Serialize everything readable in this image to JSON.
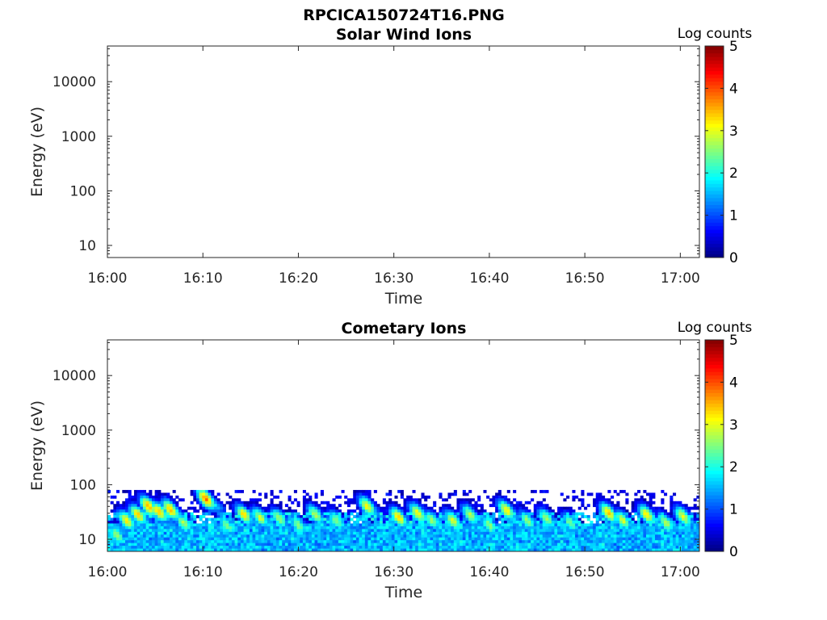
{
  "figure_title": "RPCICA150724T16.PNG",
  "chart_data": [
    {
      "type": "heatmap",
      "title": "Solar Wind Ions",
      "xlabel": "Time",
      "ylabel": "Energy (eV)",
      "x_ticks": [
        "16:00",
        "16:10",
        "16:20",
        "16:30",
        "16:40",
        "16:50",
        "17:00"
      ],
      "y_scale": "log",
      "y_ticks": [
        {
          "value": 10,
          "label": "10"
        },
        {
          "value": 100,
          "label": "100"
        },
        {
          "value": 1000,
          "label": "1000"
        },
        {
          "value": 10000,
          "label": "10000"
        }
      ],
      "ylim": [
        6,
        45000
      ],
      "xlim": [
        "16:00",
        "17:02"
      ],
      "colorbar": {
        "label": "Log counts",
        "range": [
          0,
          5
        ],
        "ticks": [
          "0",
          "1",
          "2",
          "3",
          "4",
          "5"
        ],
        "colormap": "jet"
      },
      "data": "empty"
    },
    {
      "type": "heatmap",
      "title": "Cometary Ions",
      "xlabel": "Time",
      "ylabel": "Energy (eV)",
      "x_ticks": [
        "16:00",
        "16:10",
        "16:20",
        "16:30",
        "16:40",
        "16:50",
        "17:00"
      ],
      "y_scale": "log",
      "y_ticks": [
        {
          "value": 10,
          "label": "10"
        },
        {
          "value": 100,
          "label": "100"
        },
        {
          "value": 1000,
          "label": "1000"
        },
        {
          "value": 10000,
          "label": "10000"
        }
      ],
      "ylim": [
        6,
        45000
      ],
      "xlim": [
        "16:00",
        "17:02"
      ],
      "colorbar": {
        "label": "Log counts",
        "range": [
          0,
          5
        ],
        "ticks": [
          "0",
          "1",
          "2",
          "3",
          "4",
          "5"
        ],
        "colormap": "jet"
      },
      "energy_coverage_ev": [
        6,
        80
      ],
      "baseline_log_counts": 1.9,
      "noise_log_counts": 0.3,
      "features": [
        {
          "time_min": 1.0,
          "energy_ev": 12,
          "log_counts": 2.6
        },
        {
          "time_min": 2.0,
          "energy_ev": 22,
          "log_counts": 3.2
        },
        {
          "time_min": 3.2,
          "energy_ev": 28,
          "log_counts": 3.3
        },
        {
          "time_min": 4.3,
          "energy_ev": 40,
          "log_counts": 3.6
        },
        {
          "time_min": 5.4,
          "energy_ev": 32,
          "log_counts": 3.4
        },
        {
          "time_min": 6.6,
          "energy_ev": 35,
          "log_counts": 3.5
        },
        {
          "time_min": 8.0,
          "energy_ev": 20,
          "log_counts": 2.7
        },
        {
          "time_min": 10.3,
          "energy_ev": 55,
          "log_counts": 3.8
        },
        {
          "time_min": 12.5,
          "energy_ev": 18,
          "log_counts": 2.5
        },
        {
          "time_min": 14.3,
          "energy_ev": 28,
          "log_counts": 3.3
        },
        {
          "time_min": 16.0,
          "energy_ev": 25,
          "log_counts": 2.9
        },
        {
          "time_min": 18.0,
          "energy_ev": 24,
          "log_counts": 2.7
        },
        {
          "time_min": 20.0,
          "energy_ev": 18,
          "log_counts": 2.6
        },
        {
          "time_min": 21.8,
          "energy_ev": 28,
          "log_counts": 2.8
        },
        {
          "time_min": 24.0,
          "energy_ev": 22,
          "log_counts": 2.6
        },
        {
          "time_min": 27.2,
          "energy_ev": 40,
          "log_counts": 3.1
        },
        {
          "time_min": 30.5,
          "energy_ev": 25,
          "log_counts": 3.3
        },
        {
          "time_min": 32.5,
          "energy_ev": 30,
          "log_counts": 3.1
        },
        {
          "time_min": 34.0,
          "energy_ev": 22,
          "log_counts": 2.6
        },
        {
          "time_min": 36.2,
          "energy_ev": 22,
          "log_counts": 3.0
        },
        {
          "time_min": 38.0,
          "energy_ev": 28,
          "log_counts": 2.8
        },
        {
          "time_min": 40.0,
          "energy_ev": 18,
          "log_counts": 2.6
        },
        {
          "time_min": 41.8,
          "energy_ev": 34,
          "log_counts": 3.2
        },
        {
          "time_min": 44.0,
          "energy_ev": 22,
          "log_counts": 2.6
        },
        {
          "time_min": 46.0,
          "energy_ev": 24,
          "log_counts": 2.7
        },
        {
          "time_min": 48.5,
          "energy_ev": 20,
          "log_counts": 2.5
        },
        {
          "time_min": 52.5,
          "energy_ev": 30,
          "log_counts": 3.4
        },
        {
          "time_min": 54.0,
          "energy_ev": 22,
          "log_counts": 2.9
        },
        {
          "time_min": 56.5,
          "energy_ev": 28,
          "log_counts": 3.2
        },
        {
          "time_min": 58.5,
          "energy_ev": 20,
          "log_counts": 2.8
        },
        {
          "time_min": 60.3,
          "energy_ev": 26,
          "log_counts": 3.0
        }
      ]
    }
  ]
}
